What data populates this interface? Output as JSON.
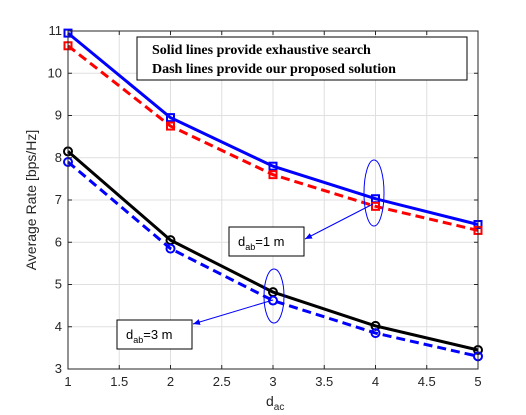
{
  "chart_data": {
    "type": "line",
    "xlabel": "d",
    "xlabel_sub": "ac",
    "ylabel": "Average Rate [bps/Hz]",
    "xlim": [
      1,
      5
    ],
    "ylim": [
      3,
      11
    ],
    "x": [
      1,
      2,
      3,
      4,
      5
    ],
    "x_ticks": [
      "1",
      "1.5",
      "2",
      "2.5",
      "3",
      "3.5",
      "4",
      "4.5",
      "5"
    ],
    "y_ticks": [
      "3",
      "4",
      "5",
      "6",
      "7",
      "8",
      "9",
      "10",
      "11"
    ],
    "grid": true,
    "series": [
      {
        "values": [
          10.95,
          8.95,
          7.8,
          7.03,
          6.42
        ],
        "color": "#0000ff",
        "dash": "solid",
        "marker": "square"
      },
      {
        "values": [
          10.65,
          8.75,
          7.6,
          6.85,
          6.28
        ],
        "color": "#ff0000",
        "dash": "dashed",
        "marker": "square"
      },
      {
        "values": [
          8.15,
          6.05,
          4.82,
          4.02,
          3.45
        ],
        "color": "#000000",
        "dash": "solid",
        "marker": "circle"
      },
      {
        "values": [
          7.9,
          5.85,
          4.62,
          3.85,
          3.3
        ],
        "color": "#0000ff",
        "dash": "dashed",
        "marker": "circle"
      }
    ],
    "notes": [
      "Solid lines provide exhaustive search",
      "Dash lines provide our proposed solution"
    ],
    "annotations": [
      {
        "main": "d",
        "sub": "ab",
        "rest": "=1 m"
      },
      {
        "main": "d",
        "sub": "ab",
        "rest": "=3 m"
      }
    ]
  }
}
